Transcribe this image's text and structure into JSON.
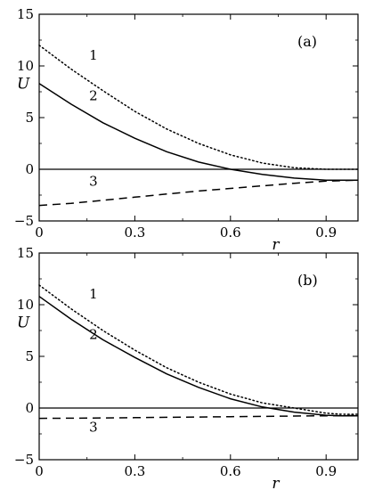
{
  "chart_data": [
    {
      "type": "line",
      "panel_label": "(a)",
      "xlabel": "r",
      "ylabel": "U",
      "xlim": [
        0,
        1.0
      ],
      "ylim": [
        -5,
        15
      ],
      "xticks": [
        0,
        0.3,
        0.6,
        0.9
      ],
      "xtick_labels": [
        "0",
        "0.3",
        "0.6",
        "0.9"
      ],
      "yticks": [
        -5,
        0,
        5,
        10,
        15
      ],
      "ytick_labels": [
        "−5",
        "0",
        "5",
        "10",
        "15"
      ],
      "zero_line": true,
      "grid": false,
      "series": [
        {
          "name": "1",
          "style": "dotted",
          "x": [
            0,
            0.1,
            0.2,
            0.3,
            0.4,
            0.5,
            0.6,
            0.7,
            0.8,
            0.9,
            0.95,
            1.0
          ],
          "y": [
            12.0,
            9.7,
            7.6,
            5.6,
            3.9,
            2.5,
            1.4,
            0.6,
            0.15,
            0.0,
            0.0,
            0.0
          ],
          "label_pos": [
            0.17,
            10.6
          ]
        },
        {
          "name": "2",
          "style": "solid",
          "x": [
            0,
            0.1,
            0.2,
            0.3,
            0.4,
            0.5,
            0.6,
            0.7,
            0.8,
            0.9,
            0.95,
            1.0
          ],
          "y": [
            8.3,
            6.3,
            4.5,
            3.0,
            1.7,
            0.7,
            0.0,
            -0.5,
            -0.85,
            -1.05,
            -1.05,
            -1.05
          ],
          "label_pos": [
            0.17,
            6.7
          ]
        },
        {
          "name": "3",
          "style": "dashed",
          "x": [
            0,
            0.1,
            0.2,
            0.3,
            0.4,
            0.5,
            0.6,
            0.7,
            0.8,
            0.9,
            1.0
          ],
          "y": [
            -3.5,
            -3.3,
            -3.0,
            -2.7,
            -2.4,
            -2.1,
            -1.85,
            -1.6,
            -1.35,
            -1.15,
            -1.05
          ],
          "label_pos": [
            0.17,
            -1.6
          ]
        }
      ]
    },
    {
      "type": "line",
      "panel_label": "(b)",
      "xlabel": "r",
      "ylabel": "U",
      "xlim": [
        0,
        1.0
      ],
      "ylim": [
        -5,
        15
      ],
      "xticks": [
        0,
        0.3,
        0.6,
        0.9
      ],
      "xtick_labels": [
        "0",
        "0.3",
        "0.6",
        "0.9"
      ],
      "yticks": [
        -5,
        0,
        5,
        10,
        15
      ],
      "ytick_labels": [
        "−5",
        "0",
        "5",
        "10",
        "15"
      ],
      "zero_line": true,
      "grid": false,
      "series": [
        {
          "name": "1",
          "style": "dotted",
          "x": [
            0,
            0.1,
            0.2,
            0.3,
            0.4,
            0.5,
            0.6,
            0.7,
            0.8,
            0.9,
            0.95,
            1.0
          ],
          "y": [
            11.9,
            9.6,
            7.5,
            5.6,
            3.9,
            2.5,
            1.35,
            0.5,
            0.0,
            -0.5,
            -0.6,
            -0.6
          ],
          "label_pos": [
            0.17,
            10.6
          ]
        },
        {
          "name": "2",
          "style": "solid",
          "x": [
            0,
            0.1,
            0.2,
            0.3,
            0.4,
            0.5,
            0.6,
            0.7,
            0.8,
            0.9,
            0.95,
            1.0
          ],
          "y": [
            10.8,
            8.6,
            6.6,
            4.9,
            3.3,
            2.0,
            0.9,
            0.1,
            -0.4,
            -0.7,
            -0.75,
            -0.75
          ],
          "label_pos": [
            0.17,
            6.7
          ]
        },
        {
          "name": "3",
          "style": "dashed",
          "x": [
            0,
            0.1,
            0.2,
            0.3,
            0.4,
            0.5,
            0.6,
            0.7,
            0.8,
            0.9,
            1.0
          ],
          "y": [
            -1.0,
            -0.98,
            -0.96,
            -0.93,
            -0.9,
            -0.87,
            -0.84,
            -0.81,
            -0.78,
            -0.75,
            -0.72
          ],
          "label_pos": [
            0.17,
            -2.3
          ]
        }
      ]
    }
  ]
}
